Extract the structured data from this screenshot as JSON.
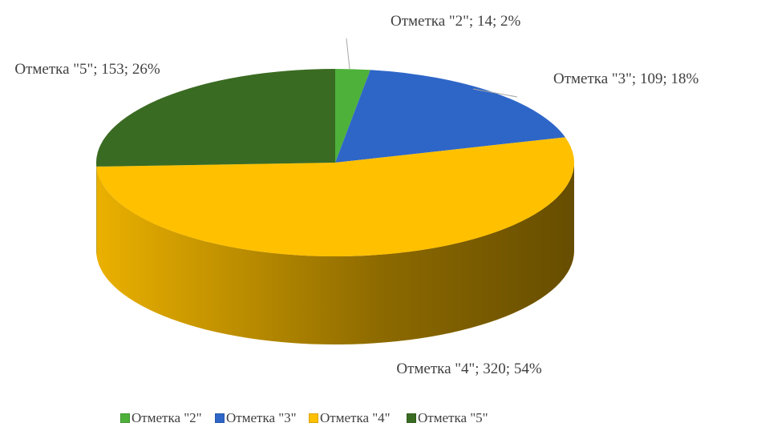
{
  "chart_data": {
    "type": "pie3d",
    "categories": [
      "Отметка \"2\"",
      "Отметка \"3\"",
      "Отметка \"4\"",
      "Отметка \"5\""
    ],
    "values": [
      14,
      109,
      320,
      153
    ],
    "value_labels": [
      "Отметка \"2\"; 14; 2%",
      "Отметка \"3\"; 109; 18%",
      "Отметка \"4\"; 320; 54%",
      "Отметка \"5\"; 153; 26%"
    ],
    "colors": [
      "#4eb13a",
      "#2e66c8",
      "#ffc000",
      "#3a6b22"
    ],
    "legend": "bottom"
  }
}
